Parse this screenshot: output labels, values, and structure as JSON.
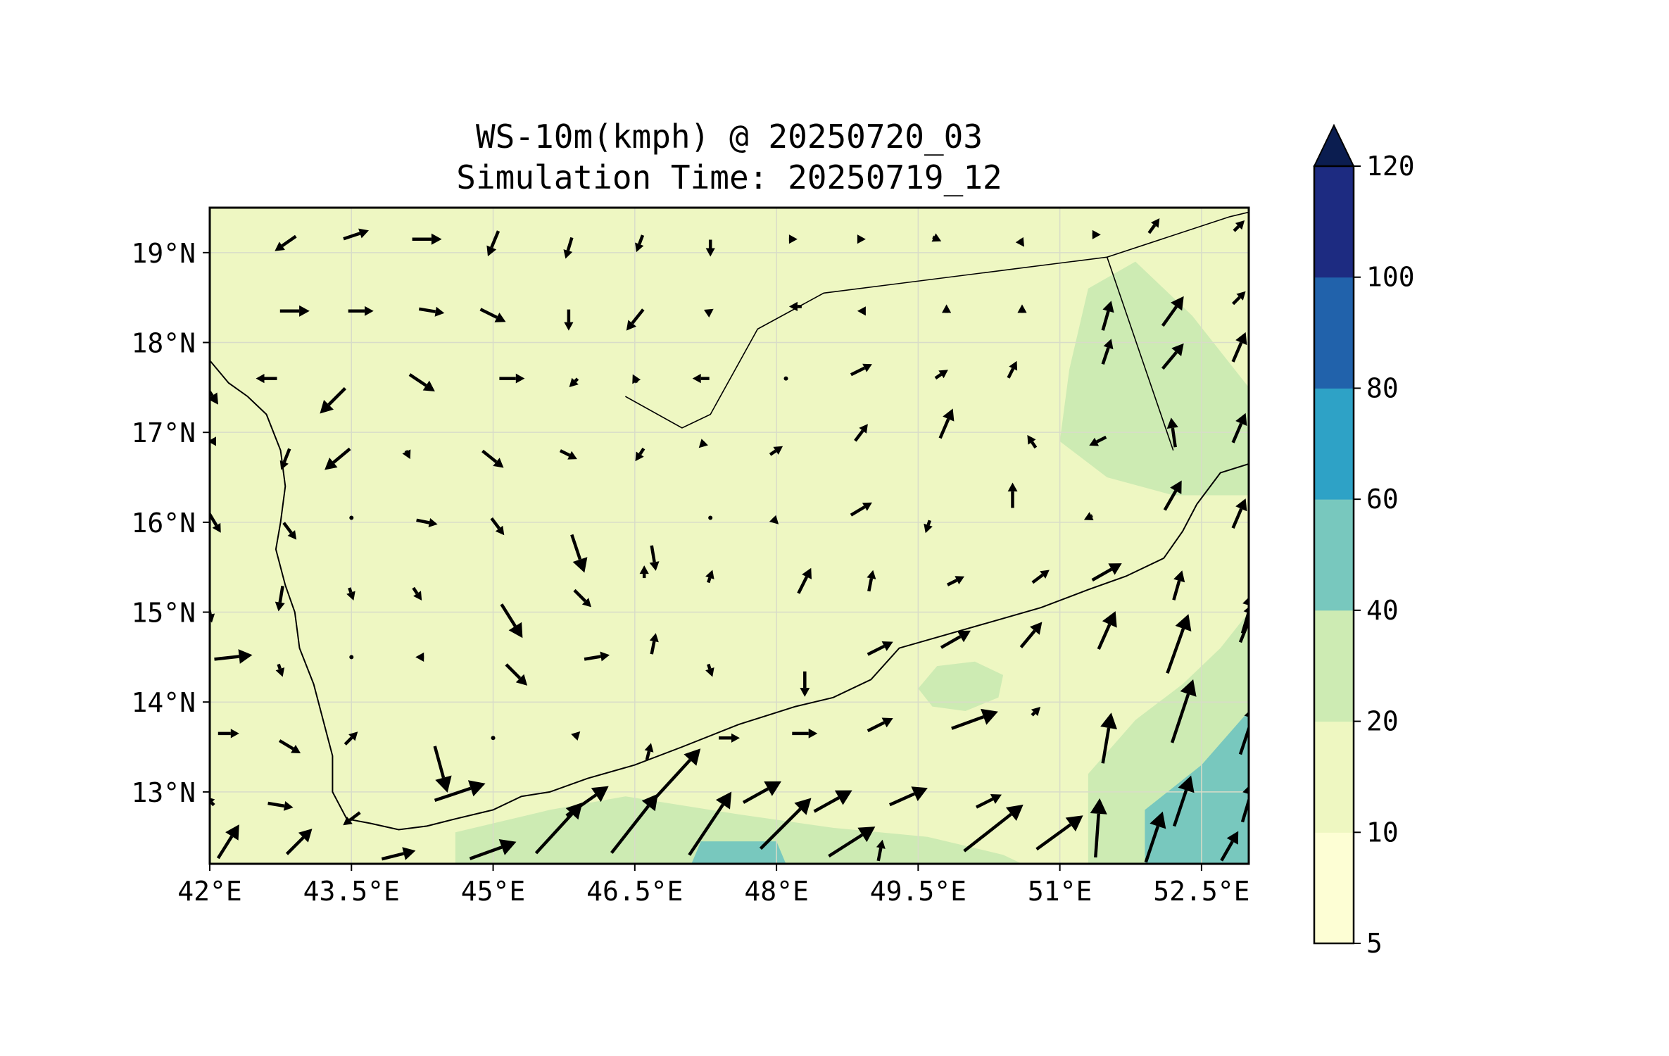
{
  "title": {
    "line1": "WS-10m(kmph) @ 20250720_03",
    "line2": "Simulation Time: 20250719_12"
  },
  "map": {
    "lon_range": [
      42.0,
      53.0
    ],
    "lat_range": [
      12.2,
      19.5
    ],
    "x_ticks": [
      {
        "lon": 42.0,
        "label": "42°E"
      },
      {
        "lon": 43.5,
        "label": "43.5°E"
      },
      {
        "lon": 45.0,
        "label": "45°E"
      },
      {
        "lon": 46.5,
        "label": "46.5°E"
      },
      {
        "lon": 48.0,
        "label": "48°E"
      },
      {
        "lon": 49.5,
        "label": "49.5°E"
      },
      {
        "lon": 51.0,
        "label": "51°E"
      },
      {
        "lon": 52.5,
        "label": "52.5°E"
      }
    ],
    "y_ticks": [
      {
        "lat": 19.0,
        "label": "19°N"
      },
      {
        "lat": 18.0,
        "label": "18°N"
      },
      {
        "lat": 17.0,
        "label": "17°N"
      },
      {
        "lat": 16.0,
        "label": "16°N"
      },
      {
        "lat": 15.0,
        "label": "15°N"
      },
      {
        "lat": 14.0,
        "label": "14°N"
      },
      {
        "lat": 13.0,
        "label": "13°N"
      }
    ],
    "grid": true,
    "background_fill": "#eef7c2",
    "land_border_color": "#000000"
  },
  "colorbar": {
    "levels": [
      5,
      10,
      20,
      40,
      60,
      80,
      100,
      120
    ],
    "labels": [
      "5",
      "10",
      "20",
      "40",
      "60",
      "80",
      "100",
      "120"
    ],
    "colors": [
      "#fdfed4",
      "#eef7c1",
      "#cdebb3",
      "#78c8be",
      "#2ea2c6",
      "#2162ab",
      "#1d2b81"
    ],
    "extend_color": "#0b1d50",
    "extend": "max"
  },
  "regions": [
    {
      "level": 2,
      "points": [
        [
          51.3,
          12.2
        ],
        [
          51.3,
          13.2
        ],
        [
          51.8,
          13.8
        ],
        [
          52.3,
          14.2
        ],
        [
          52.7,
          14.6
        ],
        [
          53.0,
          15.0
        ],
        [
          53.0,
          12.2
        ]
      ]
    },
    {
      "level": 2,
      "points": [
        [
          44.6,
          12.2
        ],
        [
          44.6,
          12.55
        ],
        [
          45.6,
          12.8
        ],
        [
          46.4,
          12.95
        ],
        [
          47.6,
          12.75
        ],
        [
          48.6,
          12.6
        ],
        [
          49.6,
          12.5
        ],
        [
          50.4,
          12.3
        ],
        [
          50.6,
          12.2
        ]
      ]
    },
    {
      "level": 2,
      "points": [
        [
          49.5,
          14.15
        ],
        [
          49.65,
          13.95
        ],
        [
          50.0,
          13.9
        ],
        [
          50.35,
          14.05
        ],
        [
          50.4,
          14.3
        ],
        [
          50.1,
          14.45
        ],
        [
          49.7,
          14.4
        ]
      ]
    },
    {
      "level": 2,
      "points": [
        [
          51.0,
          16.9
        ],
        [
          51.5,
          16.5
        ],
        [
          52.2,
          16.3
        ],
        [
          53.0,
          16.3
        ],
        [
          53.0,
          17.5
        ],
        [
          52.4,
          18.3
        ],
        [
          51.8,
          18.9
        ],
        [
          51.3,
          18.6
        ],
        [
          51.1,
          17.7
        ]
      ]
    },
    {
      "level": 3,
      "points": [
        [
          51.9,
          12.2
        ],
        [
          51.9,
          12.8
        ],
        [
          52.5,
          13.3
        ],
        [
          53.0,
          13.9
        ],
        [
          53.0,
          12.2
        ]
      ]
    },
    {
      "level": 3,
      "points": [
        [
          47.1,
          12.2
        ],
        [
          47.2,
          12.45
        ],
        [
          48.0,
          12.45
        ],
        [
          48.1,
          12.2
        ]
      ]
    }
  ],
  "borders": [
    [
      [
        46.4,
        17.4
      ],
      [
        47.0,
        17.05
      ],
      [
        47.3,
        17.2
      ],
      [
        47.8,
        18.15
      ],
      [
        48.5,
        18.55
      ],
      [
        51.5,
        18.95
      ],
      [
        52.2,
        16.8
      ]
    ],
    [
      [
        51.5,
        18.95
      ],
      [
        52.8,
        19.4
      ],
      [
        53.0,
        19.45
      ]
    ]
  ],
  "coastlines": [
    [
      [
        42.0,
        17.8
      ],
      [
        42.2,
        17.55
      ],
      [
        42.4,
        17.4
      ],
      [
        42.6,
        17.2
      ],
      [
        42.75,
        16.8
      ],
      [
        42.8,
        16.4
      ],
      [
        42.75,
        16.0
      ],
      [
        42.7,
        15.7
      ],
      [
        42.8,
        15.3
      ],
      [
        42.9,
        15.0
      ],
      [
        42.95,
        14.6
      ],
      [
        43.1,
        14.2
      ],
      [
        43.2,
        13.8
      ],
      [
        43.3,
        13.4
      ],
      [
        43.3,
        13.0
      ],
      [
        43.45,
        12.7
      ],
      [
        43.7,
        12.65
      ],
      [
        44.0,
        12.58
      ],
      [
        44.3,
        12.62
      ],
      [
        44.6,
        12.7
      ],
      [
        45.0,
        12.8
      ],
      [
        45.3,
        12.95
      ],
      [
        45.6,
        13.0
      ],
      [
        46.0,
        13.15
      ],
      [
        46.5,
        13.3
      ],
      [
        47.0,
        13.5
      ],
      [
        47.6,
        13.75
      ],
      [
        48.2,
        13.95
      ],
      [
        48.6,
        14.05
      ],
      [
        49.0,
        14.25
      ],
      [
        49.3,
        14.6
      ],
      [
        49.8,
        14.75
      ],
      [
        50.3,
        14.9
      ],
      [
        50.8,
        15.05
      ],
      [
        51.3,
        15.25
      ],
      [
        51.7,
        15.4
      ],
      [
        52.1,
        15.6
      ],
      [
        52.3,
        15.9
      ],
      [
        52.45,
        16.2
      ],
      [
        52.7,
        16.55
      ],
      [
        53.0,
        16.65
      ]
    ]
  ],
  "wind_vectors": [
    {
      "lon": 42.8,
      "lat": 19.1,
      "u": -10,
      "v": -7
    },
    {
      "lon": 43.55,
      "lat": 19.2,
      "u": 12,
      "v": 4
    },
    {
      "lon": 44.3,
      "lat": 19.15,
      "u": 14,
      "v": 0
    },
    {
      "lon": 45.0,
      "lat": 19.1,
      "u": -5,
      "v": -12
    },
    {
      "lon": 45.8,
      "lat": 19.05,
      "u": -3,
      "v": -10
    },
    {
      "lon": 46.55,
      "lat": 19.1,
      "u": -3,
      "v": -8
    },
    {
      "lon": 47.3,
      "lat": 19.05,
      "u": 0,
      "v": -8
    },
    {
      "lon": 48.2,
      "lat": 19.15,
      "u": 2,
      "v": 0
    },
    {
      "lon": 48.9,
      "lat": 19.15,
      "u": 4,
      "v": 0
    },
    {
      "lon": 49.7,
      "lat": 19.15,
      "u": 4,
      "v": -2
    },
    {
      "lon": 50.6,
      "lat": 19.1,
      "u": 2,
      "v": -3
    },
    {
      "lon": 51.4,
      "lat": 19.2,
      "u": 3,
      "v": 0
    },
    {
      "lon": 52.0,
      "lat": 19.3,
      "u": 5,
      "v": 7
    },
    {
      "lon": 52.9,
      "lat": 19.3,
      "u": 5,
      "v": 5
    },
    {
      "lon": 42.9,
      "lat": 18.35,
      "u": 14,
      "v": 0
    },
    {
      "lon": 43.6,
      "lat": 18.35,
      "u": 12,
      "v": 0
    },
    {
      "lon": 44.35,
      "lat": 18.35,
      "u": 12,
      "v": -2
    },
    {
      "lon": 45.0,
      "lat": 18.3,
      "u": 12,
      "v": -6
    },
    {
      "lon": 45.8,
      "lat": 18.25,
      "u": 0,
      "v": -10
    },
    {
      "lon": 46.5,
      "lat": 18.25,
      "u": -8,
      "v": -10
    },
    {
      "lon": 47.3,
      "lat": 18.35,
      "u": 3,
      "v": 2
    },
    {
      "lon": 48.2,
      "lat": 18.4,
      "u": -6,
      "v": 0
    },
    {
      "lon": 48.9,
      "lat": 18.35,
      "u": -4,
      "v": 0
    },
    {
      "lon": 49.8,
      "lat": 18.4,
      "u": 0,
      "v": 2
    },
    {
      "lon": 50.6,
      "lat": 18.4,
      "u": 0,
      "v": 2
    },
    {
      "lon": 51.5,
      "lat": 18.3,
      "u": 4,
      "v": 14
    },
    {
      "lon": 52.2,
      "lat": 18.35,
      "u": 10,
      "v": 14
    },
    {
      "lon": 52.9,
      "lat": 18.5,
      "u": 6,
      "v": 6
    },
    {
      "lon": 42.0,
      "lat": 17.45,
      "u": 8,
      "v": -12
    },
    {
      "lon": 42.6,
      "lat": 17.6,
      "u": -10,
      "v": 0
    },
    {
      "lon": 43.3,
      "lat": 17.35,
      "u": -12,
      "v": -12
    },
    {
      "lon": 44.25,
      "lat": 17.55,
      "u": 12,
      "v": -8
    },
    {
      "lon": 45.2,
      "lat": 17.6,
      "u": 12,
      "v": 0
    },
    {
      "lon": 45.85,
      "lat": 17.55,
      "u": -4,
      "v": -4
    },
    {
      "lon": 46.5,
      "lat": 17.6,
      "u": -2,
      "v": 4
    },
    {
      "lon": 47.2,
      "lat": 17.6,
      "u": -8,
      "v": 0
    },
    {
      "lon": 48.1,
      "lat": 17.6,
      "u": 0,
      "v": 0
    },
    {
      "lon": 48.9,
      "lat": 17.7,
      "u": 10,
      "v": 5
    },
    {
      "lon": 49.75,
      "lat": 17.65,
      "u": 6,
      "v": 4
    },
    {
      "lon": 50.5,
      "lat": 17.7,
      "u": 4,
      "v": 8
    },
    {
      "lon": 51.5,
      "lat": 17.9,
      "u": 4,
      "v": 12
    },
    {
      "lon": 52.2,
      "lat": 17.85,
      "u": 10,
      "v": 12
    },
    {
      "lon": 52.9,
      "lat": 17.95,
      "u": 6,
      "v": 14
    },
    {
      "lon": 42.0,
      "lat": 16.9,
      "u": -2,
      "v": 0
    },
    {
      "lon": 42.8,
      "lat": 16.7,
      "u": -4,
      "v": -10
    },
    {
      "lon": 43.35,
      "lat": 16.7,
      "u": -12,
      "v": -10
    },
    {
      "lon": 44.1,
      "lat": 16.75,
      "u": 2,
      "v": -4
    },
    {
      "lon": 45.0,
      "lat": 16.7,
      "u": 10,
      "v": -8
    },
    {
      "lon": 45.8,
      "lat": 16.75,
      "u": 8,
      "v": -4
    },
    {
      "lon": 46.55,
      "lat": 16.75,
      "u": -4,
      "v": -6
    },
    {
      "lon": 47.2,
      "lat": 16.85,
      "u": -2,
      "v": -2
    },
    {
      "lon": 48.0,
      "lat": 16.8,
      "u": 6,
      "v": 4
    },
    {
      "lon": 48.9,
      "lat": 17.0,
      "u": 6,
      "v": 8
    },
    {
      "lon": 49.8,
      "lat": 17.1,
      "u": 6,
      "v": 14
    },
    {
      "lon": 50.7,
      "lat": 16.9,
      "u": -4,
      "v": 6
    },
    {
      "lon": 51.4,
      "lat": 16.9,
      "u": -8,
      "v": -4
    },
    {
      "lon": 52.2,
      "lat": 17.0,
      "u": -2,
      "v": 14
    },
    {
      "lon": 52.9,
      "lat": 17.05,
      "u": 6,
      "v": 14
    },
    {
      "lon": 42.05,
      "lat": 16.0,
      "u": 6,
      "v": -10
    },
    {
      "lon": 42.85,
      "lat": 15.9,
      "u": 6,
      "v": -8
    },
    {
      "lon": 43.5,
      "lat": 16.05,
      "u": 0,
      "v": 0
    },
    {
      "lon": 44.3,
      "lat": 16.0,
      "u": 10,
      "v": -2
    },
    {
      "lon": 45.05,
      "lat": 15.95,
      "u": 6,
      "v": -8
    },
    {
      "lon": 45.9,
      "lat": 15.65,
      "u": 6,
      "v": -18
    },
    {
      "lon": 46.7,
      "lat": 15.6,
      "u": 2,
      "v": -12
    },
    {
      "lon": 47.3,
      "lat": 16.05,
      "u": 0,
      "v": 0
    },
    {
      "lon": 48.0,
      "lat": 16.0,
      "u": 2,
      "v": -2
    },
    {
      "lon": 48.9,
      "lat": 16.15,
      "u": 10,
      "v": 6
    },
    {
      "lon": 49.6,
      "lat": 15.95,
      "u": -2,
      "v": -6
    },
    {
      "lon": 50.5,
      "lat": 16.3,
      "u": 0,
      "v": 12
    },
    {
      "lon": 51.3,
      "lat": 16.05,
      "u": -4,
      "v": -2
    },
    {
      "lon": 52.2,
      "lat": 16.3,
      "u": 8,
      "v": 14
    },
    {
      "lon": 52.9,
      "lat": 16.1,
      "u": 6,
      "v": 14
    },
    {
      "lon": 42.0,
      "lat": 15.0,
      "u": 2,
      "v": -10
    },
    {
      "lon": 42.75,
      "lat": 15.15,
      "u": -2,
      "v": -12
    },
    {
      "lon": 43.5,
      "lat": 15.2,
      "u": 2,
      "v": -6
    },
    {
      "lon": 44.2,
      "lat": 15.2,
      "u": 4,
      "v": -6
    },
    {
      "lon": 45.2,
      "lat": 14.9,
      "u": 10,
      "v": -16
    },
    {
      "lon": 45.95,
      "lat": 15.15,
      "u": 8,
      "v": -8
    },
    {
      "lon": 46.6,
      "lat": 15.45,
      "u": 0,
      "v": 6
    },
    {
      "lon": 47.3,
      "lat": 15.4,
      "u": 2,
      "v": 6
    },
    {
      "lon": 48.3,
      "lat": 15.35,
      "u": 6,
      "v": 12
    },
    {
      "lon": 49.0,
      "lat": 15.35,
      "u": 2,
      "v": 10
    },
    {
      "lon": 49.9,
      "lat": 15.35,
      "u": 8,
      "v": 4
    },
    {
      "lon": 50.8,
      "lat": 15.4,
      "u": 8,
      "v": 6
    },
    {
      "lon": 51.5,
      "lat": 15.45,
      "u": 14,
      "v": 8
    },
    {
      "lon": 52.25,
      "lat": 15.3,
      "u": 4,
      "v": 14
    },
    {
      "lon": 53.0,
      "lat": 15.0,
      "u": 6,
      "v": 20
    },
    {
      "lon": 42.25,
      "lat": 14.5,
      "u": 18,
      "v": 2
    },
    {
      "lon": 42.75,
      "lat": 14.35,
      "u": 2,
      "v": -6
    },
    {
      "lon": 43.5,
      "lat": 14.5,
      "u": 0,
      "v": 0
    },
    {
      "lon": 44.2,
      "lat": 14.5,
      "u": -2,
      "v": 0
    },
    {
      "lon": 45.25,
      "lat": 14.3,
      "u": 10,
      "v": -10
    },
    {
      "lon": 46.1,
      "lat": 14.5,
      "u": 12,
      "v": 2
    },
    {
      "lon": 46.7,
      "lat": 14.65,
      "u": 2,
      "v": 10
    },
    {
      "lon": 47.3,
      "lat": 14.35,
      "u": 2,
      "v": -6
    },
    {
      "lon": 48.3,
      "lat": 14.2,
      "u": 0,
      "v": -12
    },
    {
      "lon": 49.1,
      "lat": 14.6,
      "u": 12,
      "v": 6
    },
    {
      "lon": 49.9,
      "lat": 14.7,
      "u": 14,
      "v": 8
    },
    {
      "lon": 50.7,
      "lat": 14.75,
      "u": 10,
      "v": 12
    },
    {
      "lon": 51.5,
      "lat": 14.8,
      "u": 8,
      "v": 18
    },
    {
      "lon": 52.25,
      "lat": 14.65,
      "u": 10,
      "v": 28
    },
    {
      "lon": 53.0,
      "lat": 14.9,
      "u": 8,
      "v": 20
    },
    {
      "lon": 42.2,
      "lat": 13.65,
      "u": 10,
      "v": 0
    },
    {
      "lon": 42.85,
      "lat": 13.5,
      "u": 10,
      "v": -6
    },
    {
      "lon": 43.5,
      "lat": 13.6,
      "u": 6,
      "v": 6
    },
    {
      "lon": 44.45,
      "lat": 13.25,
      "u": 6,
      "v": -22
    },
    {
      "lon": 45.0,
      "lat": 13.6,
      "u": 0,
      "v": 0
    },
    {
      "lon": 45.9,
      "lat": 13.65,
      "u": 2,
      "v": 2
    },
    {
      "lon": 46.65,
      "lat": 13.45,
      "u": 2,
      "v": 8
    },
    {
      "lon": 47.5,
      "lat": 13.6,
      "u": 10,
      "v": 0
    },
    {
      "lon": 48.3,
      "lat": 13.65,
      "u": 12,
      "v": 0
    },
    {
      "lon": 49.1,
      "lat": 13.75,
      "u": 12,
      "v": 6
    },
    {
      "lon": 50.1,
      "lat": 13.8,
      "u": 22,
      "v": 8
    },
    {
      "lon": 50.75,
      "lat": 13.9,
      "u": 4,
      "v": 4
    },
    {
      "lon": 51.5,
      "lat": 13.6,
      "u": 4,
      "v": 24
    },
    {
      "lon": 52.3,
      "lat": 13.9,
      "u": 10,
      "v": 30
    },
    {
      "lon": 53.0,
      "lat": 13.7,
      "u": 8,
      "v": 24
    },
    {
      "lon": 42.0,
      "lat": 12.9,
      "u": -4,
      "v": 4
    },
    {
      "lon": 42.75,
      "lat": 12.85,
      "u": 12,
      "v": -2
    },
    {
      "lon": 43.5,
      "lat": 12.7,
      "u": -8,
      "v": -6
    },
    {
      "lon": 44.65,
      "lat": 13.0,
      "u": 24,
      "v": 8
    },
    {
      "lon": 46.0,
      "lat": 12.9,
      "u": 20,
      "v": 14
    },
    {
      "lon": 46.95,
      "lat": 13.2,
      "u": 22,
      "v": 24
    },
    {
      "lon": 47.85,
      "lat": 13.0,
      "u": 18,
      "v": 10
    },
    {
      "lon": 48.6,
      "lat": 12.9,
      "u": 18,
      "v": 10
    },
    {
      "lon": 49.4,
      "lat": 12.95,
      "u": 18,
      "v": 8
    },
    {
      "lon": 50.25,
      "lat": 12.9,
      "u": 12,
      "v": 6
    },
    {
      "lon": 51.4,
      "lat": 12.6,
      "u": 2,
      "v": 28
    },
    {
      "lon": 52.3,
      "lat": 12.9,
      "u": 8,
      "v": 24
    },
    {
      "lon": 53.0,
      "lat": 12.9,
      "u": 6,
      "v": 20
    },
    {
      "lon": 42.2,
      "lat": 12.45,
      "u": 10,
      "v": 16
    },
    {
      "lon": 42.95,
      "lat": 12.45,
      "u": 12,
      "v": 12
    },
    {
      "lon": 44.0,
      "lat": 12.3,
      "u": 16,
      "v": 4
    },
    {
      "lon": 45.0,
      "lat": 12.35,
      "u": 22,
      "v": 8
    },
    {
      "lon": 45.7,
      "lat": 12.6,
      "u": 22,
      "v": 24
    },
    {
      "lon": 46.5,
      "lat": 12.65,
      "u": 22,
      "v": 28
    },
    {
      "lon": 47.3,
      "lat": 12.65,
      "u": 20,
      "v": 30
    },
    {
      "lon": 48.1,
      "lat": 12.65,
      "u": 24,
      "v": 24
    },
    {
      "lon": 48.8,
      "lat": 12.45,
      "u": 22,
      "v": 14
    },
    {
      "lon": 49.1,
      "lat": 12.35,
      "u": 2,
      "v": 10
    },
    {
      "lon": 50.3,
      "lat": 12.6,
      "u": 28,
      "v": 22
    },
    {
      "lon": 51.0,
      "lat": 12.55,
      "u": 22,
      "v": 16
    },
    {
      "lon": 52.0,
      "lat": 12.5,
      "u": 8,
      "v": 24
    },
    {
      "lon": 52.8,
      "lat": 12.4,
      "u": 8,
      "v": 14
    }
  ]
}
